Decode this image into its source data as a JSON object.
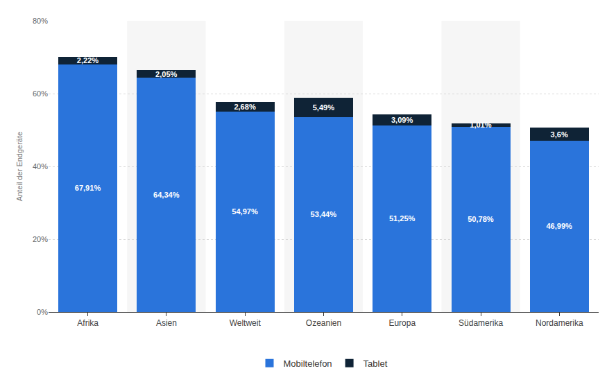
{
  "chart_data": {
    "type": "bar",
    "stacked": true,
    "data_labels": true,
    "grid": true,
    "legend": "bottom",
    "y_label": "Anteil der Endgeräte",
    "categories": [
      "Afrika",
      "Asien",
      "Weltweit",
      "Ozeanien",
      "Europa",
      "Südamerika",
      "Nordamerika"
    ],
    "series": [
      {
        "name": "Mobiltelefon",
        "color": "#2a74db",
        "values": [
          67.91,
          64.34,
          54.97,
          53.44,
          51.25,
          50.78,
          46.99
        ],
        "value_labels": [
          "67,91%",
          "64,34%",
          "54,97%",
          "53,44%",
          "51,25%",
          "50,78%",
          "46,99%"
        ]
      },
      {
        "name": "Tablet",
        "color": "#0f2336",
        "values": [
          2.22,
          2.05,
          2.68,
          5.49,
          3.09,
          1.01,
          3.6
        ],
        "value_labels": [
          "2,22%",
          "2,05%",
          "2,68%",
          "5,49%",
          "3,09%",
          "1,01%",
          "3,6%"
        ]
      }
    ],
    "ylim": [
      0,
      80
    ],
    "yticks": [
      {
        "value": 0,
        "label": "0%"
      },
      {
        "value": 20,
        "label": "20%"
      },
      {
        "value": 40,
        "label": "40%"
      },
      {
        "value": 60,
        "label": "60%"
      },
      {
        "value": 80,
        "label": "80%"
      }
    ]
  }
}
